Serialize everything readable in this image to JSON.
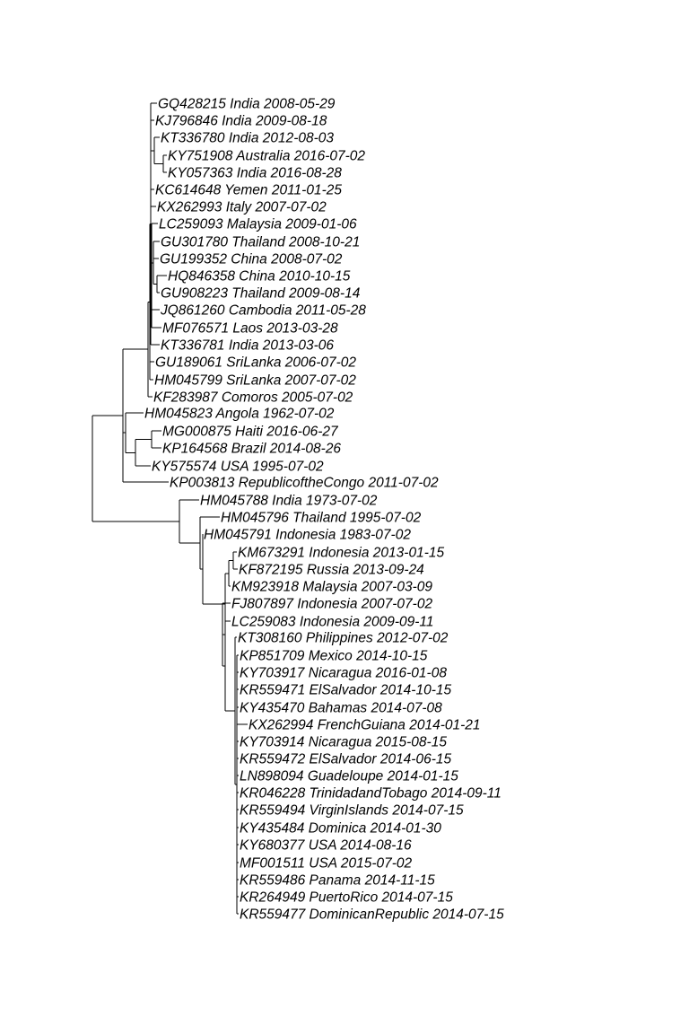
{
  "tree": {
    "type": "phylogram",
    "tips": [
      {
        "accession": "GQ428215",
        "country": "India",
        "date": "2008-05-29",
        "label": "GQ428215 India 2008-05-29"
      },
      {
        "accession": "KJ796846",
        "country": "India",
        "date": "2009-08-18",
        "label": "KJ796846 India 2009-08-18"
      },
      {
        "accession": "KT336780",
        "country": "India",
        "date": "2012-08-03",
        "label": "KT336780 India 2012-08-03"
      },
      {
        "accession": "KY751908",
        "country": "Australia",
        "date": "2016-07-02",
        "label": "KY751908 Australia 2016-07-02"
      },
      {
        "accession": "KY057363",
        "country": "India",
        "date": "2016-08-28",
        "label": "KY057363 India 2016-08-28"
      },
      {
        "accession": "KC614648",
        "country": "Yemen",
        "date": "2011-01-25",
        "label": "KC614648 Yemen 2011-01-25"
      },
      {
        "accession": "KX262993",
        "country": "Italy",
        "date": "2007-07-02",
        "label": "KX262993 Italy 2007-07-02"
      },
      {
        "accession": "LC259093",
        "country": "Malaysia",
        "date": "2009-01-06",
        "label": "LC259093 Malaysia 2009-01-06"
      },
      {
        "accession": "GU301780",
        "country": "Thailand",
        "date": "2008-10-21",
        "label": "GU301780 Thailand 2008-10-21"
      },
      {
        "accession": "GU199352",
        "country": "China",
        "date": "2008-07-02",
        "label": "GU199352 China 2008-07-02"
      },
      {
        "accession": "HQ846358",
        "country": "China",
        "date": "2010-10-15",
        "label": "HQ846358 China 2010-10-15"
      },
      {
        "accession": "GU908223",
        "country": "Thailand",
        "date": "2009-08-14",
        "label": "GU908223 Thailand 2009-08-14"
      },
      {
        "accession": "JQ861260",
        "country": "Cambodia",
        "date": "2011-05-28",
        "label": "JQ861260 Cambodia 2011-05-28"
      },
      {
        "accession": "MF076571",
        "country": "Laos",
        "date": "2013-03-28",
        "label": "MF076571 Laos 2013-03-28"
      },
      {
        "accession": "KT336781",
        "country": "India",
        "date": "2013-03-06",
        "label": "KT336781 India 2013-03-06"
      },
      {
        "accession": "GU189061",
        "country": "SriLanka",
        "date": "2006-07-02",
        "label": "GU189061 SriLanka 2006-07-02"
      },
      {
        "accession": "HM045799",
        "country": "SriLanka",
        "date": "2007-07-02",
        "label": "HM045799 SriLanka 2007-07-02"
      },
      {
        "accession": "KF283987",
        "country": "Comoros",
        "date": "2005-07-02",
        "label": "KF283987 Comoros 2005-07-02"
      },
      {
        "accession": "HM045823",
        "country": "Angola",
        "date": "1962-07-02",
        "label": "HM045823 Angola 1962-07-02"
      },
      {
        "accession": "MG000875",
        "country": "Haiti",
        "date": "2016-06-27",
        "label": "MG000875 Haiti 2016-06-27"
      },
      {
        "accession": "KP164568",
        "country": "Brazil",
        "date": "2014-08-26",
        "label": "KP164568 Brazil 2014-08-26"
      },
      {
        "accession": "KY575574",
        "country": "USA",
        "date": "1995-07-02",
        "label": "KY575574 USA 1995-07-02"
      },
      {
        "accession": "KP003813",
        "country": "RepublicoftheCongo",
        "date": "2011-07-02",
        "label": "KP003813 RepublicoftheCongo 2011-07-02"
      },
      {
        "accession": "HM045788",
        "country": "India",
        "date": "1973-07-02",
        "label": "HM045788 India 1973-07-02"
      },
      {
        "accession": "HM045796",
        "country": "Thailand",
        "date": "1995-07-02",
        "label": "HM045796 Thailand 1995-07-02"
      },
      {
        "accession": "HM045791",
        "country": "Indonesia",
        "date": "1983-07-02",
        "label": "HM045791 Indonesia 1983-07-02"
      },
      {
        "accession": "KM673291",
        "country": "Indonesia",
        "date": "2013-01-15",
        "label": "KM673291 Indonesia 2013-01-15"
      },
      {
        "accession": "KF872195",
        "country": "Russia",
        "date": "2013-09-24",
        "label": "KF872195 Russia 2013-09-24"
      },
      {
        "accession": "KM923918",
        "country": "Malaysia",
        "date": "2007-03-09",
        "label": "KM923918 Malaysia 2007-03-09"
      },
      {
        "accession": "FJ807897",
        "country": "Indonesia",
        "date": "2007-07-02",
        "label": "FJ807897 Indonesia 2007-07-02"
      },
      {
        "accession": "LC259083",
        "country": "Indonesia",
        "date": "2009-09-11",
        "label": "LC259083 Indonesia 2009-09-11"
      },
      {
        "accession": "KT308160",
        "country": "Philippines",
        "date": "2012-07-02",
        "label": "KT308160 Philippines 2012-07-02"
      },
      {
        "accession": "KP851709",
        "country": "Mexico",
        "date": "2014-10-15",
        "label": "KP851709 Mexico 2014-10-15"
      },
      {
        "accession": "KY703917",
        "country": "Nicaragua",
        "date": "2016-01-08",
        "label": "KY703917 Nicaragua 2016-01-08"
      },
      {
        "accession": "KR559471",
        "country": "ElSalvador",
        "date": "2014-10-15",
        "label": "KR559471 ElSalvador 2014-10-15"
      },
      {
        "accession": "KY435470",
        "country": "Bahamas",
        "date": "2014-07-08",
        "label": "KY435470 Bahamas 2014-07-08"
      },
      {
        "accession": "KX262994",
        "country": "FrenchGuiana",
        "date": "2014-01-21",
        "label": "KX262994 FrenchGuiana 2014-01-21"
      },
      {
        "accession": "KY703914",
        "country": "Nicaragua",
        "date": "2015-08-15",
        "label": "KY703914 Nicaragua 2015-08-15"
      },
      {
        "accession": "KR559472",
        "country": "ElSalvador",
        "date": "2014-06-15",
        "label": "KR559472 ElSalvador 2014-06-15"
      },
      {
        "accession": "LN898094",
        "country": "Guadeloupe",
        "date": "2014-01-15",
        "label": "LN898094 Guadeloupe 2014-01-15"
      },
      {
        "accession": "KR046228",
        "country": "TrinidadandTobago",
        "date": "2014-09-11",
        "label": "KR046228 TrinidadandTobago 2014-09-11"
      },
      {
        "accession": "KR559494",
        "country": "VirginIslands",
        "date": "2014-07-15",
        "label": "KR559494 VirginIslands 2014-07-15"
      },
      {
        "accession": "KY435484",
        "country": "Dominica",
        "date": "2014-01-30",
        "label": "KY435484 Dominica 2014-01-30"
      },
      {
        "accession": "KY680377",
        "country": "USA",
        "date": "2014-08-16",
        "label": "KY680377 USA 2014-08-16"
      },
      {
        "accession": "MF001511",
        "country": "USA",
        "date": "2015-07-02",
        "label": "MF001511 USA 2015-07-02"
      },
      {
        "accession": "KR559486",
        "country": "Panama",
        "date": "2014-11-15",
        "label": "KR559486 Panama 2014-11-15"
      },
      {
        "accession": "KR264949",
        "country": "PuertoRico",
        "date": "2014-07-15",
        "label": "KR264949 PuertoRico 2014-07-15"
      },
      {
        "accession": "KR559477",
        "country": "DominicanRepublic",
        "date": "2014-07-15",
        "label": "KR559477 DominicanRepublic 2014-07-15"
      }
    ]
  }
}
